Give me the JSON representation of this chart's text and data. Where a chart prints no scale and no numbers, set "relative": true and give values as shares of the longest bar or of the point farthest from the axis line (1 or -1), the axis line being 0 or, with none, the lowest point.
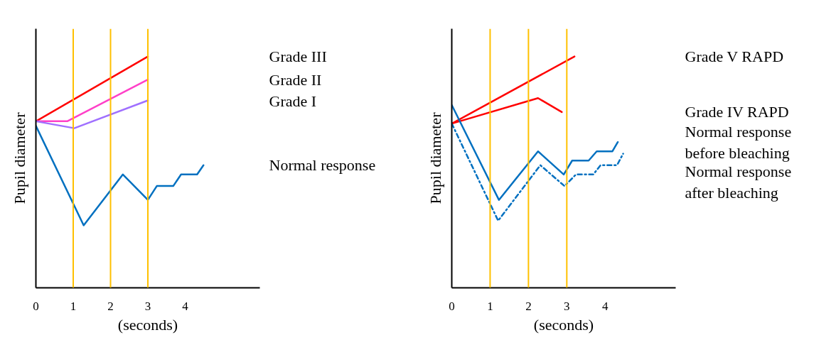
{
  "chart_data": [
    {
      "type": "line",
      "relative": true,
      "ylabel": "Pupil diameter",
      "xlabel": "(seconds)",
      "xlim": [
        0,
        6
      ],
      "xticks": [
        0,
        1,
        2,
        3,
        4
      ],
      "grid": false,
      "legend": false,
      "marker": "none",
      "ref_lines": [
        {
          "axis": "x",
          "value": 1,
          "color": "#ffc000"
        },
        {
          "axis": "x",
          "value": 2,
          "color": "#ffc000"
        },
        {
          "axis": "x",
          "value": 3,
          "color": "#ffc000"
        }
      ],
      "series": [
        {
          "name": "Grade III",
          "color": "#ff0000",
          "x": [
            0,
            3
          ],
          "values": [
            0.72,
            1.0
          ]
        },
        {
          "name": "Grade II",
          "color": "#ff40c8",
          "x": [
            0,
            0.84,
            3
          ],
          "values": [
            0.72,
            0.72,
            0.9
          ]
        },
        {
          "name": "Grade I",
          "color": "#a070ff",
          "x": [
            0,
            1.03,
            3
          ],
          "values": [
            0.72,
            0.69,
            0.81
          ]
        },
        {
          "name": "Normal response",
          "color": "#0070c0",
          "x": [
            0,
            1.28,
            2.33,
            3,
            3.24,
            3.68,
            3.89,
            4.32,
            4.49
          ],
          "values": [
            0.7,
            0.27,
            0.49,
            0.38,
            0.44,
            0.44,
            0.49,
            0.49,
            0.53
          ]
        }
      ]
    },
    {
      "type": "line",
      "relative": true,
      "ylabel": "Pupil diameter",
      "xlabel": "(seconds)",
      "xlim": [
        0,
        5.84
      ],
      "xticks": [
        0,
        1,
        2,
        3,
        4
      ],
      "grid": false,
      "legend": false,
      "marker": "none",
      "ref_lines": [
        {
          "axis": "x",
          "value": 1,
          "color": "#ffc000"
        },
        {
          "axis": "x",
          "value": 2,
          "color": "#ffc000"
        },
        {
          "axis": "x",
          "value": 3,
          "color": "#ffc000"
        }
      ],
      "series": [
        {
          "name": "Grade V RAPD",
          "color": "#ff0000",
          "x": [
            0,
            3.2
          ],
          "values": [
            0.71,
            1.0
          ]
        },
        {
          "name": "Grade IV RAPD",
          "color": "#ff0000",
          "x": [
            0,
            2.25,
            2.87
          ],
          "values": [
            0.71,
            0.82,
            0.76
          ]
        },
        {
          "name": "Normal response before bleaching",
          "color": "#0070c0",
          "x": [
            0,
            1.23,
            2.25,
            2.92,
            3.14,
            3.57,
            3.78,
            4.19,
            4.33
          ],
          "values": [
            0.79,
            0.38,
            0.59,
            0.49,
            0.55,
            0.55,
            0.59,
            0.59,
            0.63
          ]
        },
        {
          "name": "Normal response after bleaching",
          "color": "#0070c0",
          "line_style": "dashdot",
          "x": [
            0,
            1.21,
            2.31,
            2.94,
            3.24,
            3.69,
            3.88,
            4.31,
            4.47
          ],
          "values": [
            0.71,
            0.29,
            0.53,
            0.44,
            0.49,
            0.49,
            0.53,
            0.53,
            0.58
          ]
        }
      ]
    }
  ]
}
